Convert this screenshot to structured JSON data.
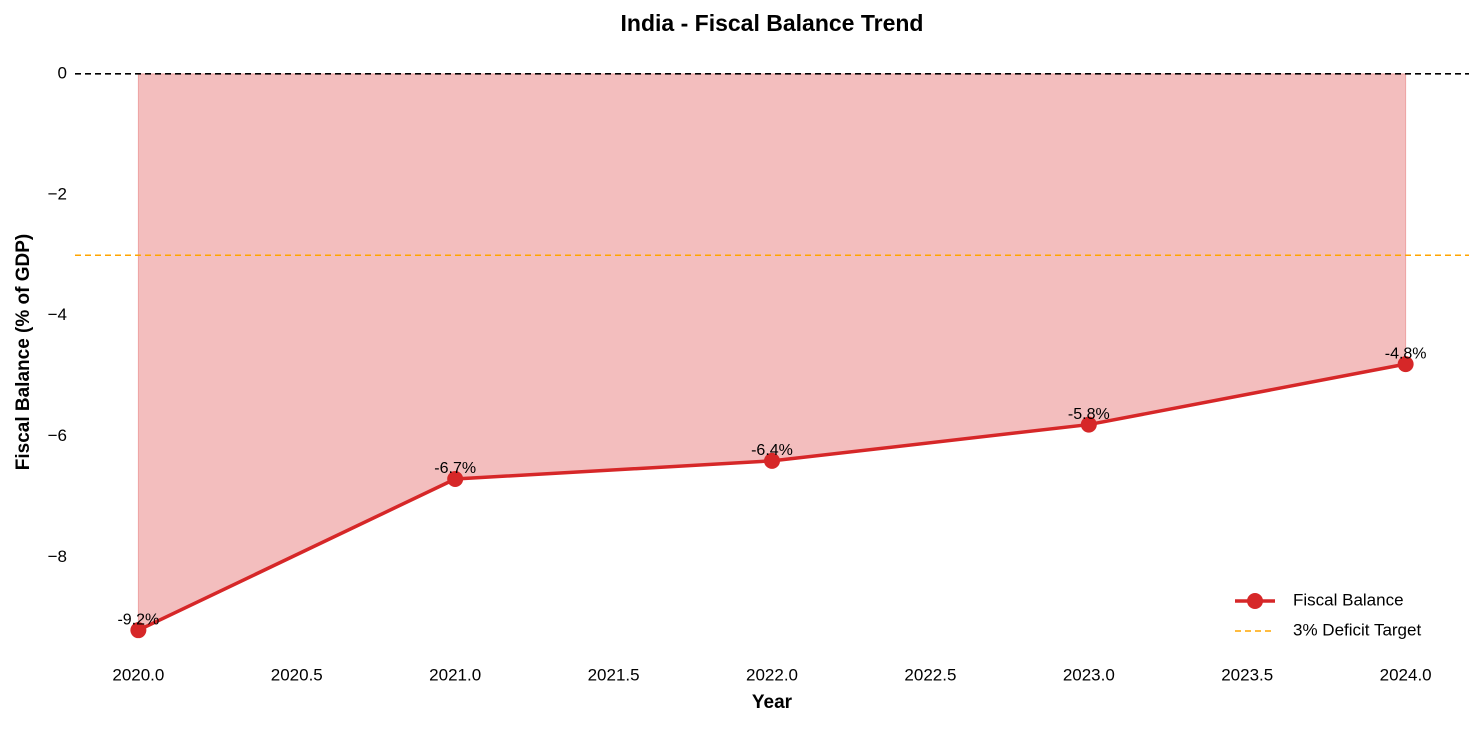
{
  "chart_data": {
    "type": "line",
    "title": "India - Fiscal Balance Trend",
    "xlabel": "Year",
    "ylabel": "Fiscal Balance (% of GDP)",
    "x": [
      2020,
      2021,
      2022,
      2023,
      2024
    ],
    "series": [
      {
        "name": "Fiscal Balance",
        "color": "#d62728",
        "fill": true,
        "fill_opacity": 0.3,
        "values": [
          -9.2,
          -6.7,
          -6.4,
          -5.8,
          -4.8
        ],
        "value_labels": [
          "-9.2%",
          "-6.7%",
          "-6.4%",
          "-5.8%",
          "-4.8%"
        ]
      }
    ],
    "reference_lines": [
      {
        "value": 0,
        "color": "#000000"
      },
      {
        "name": "3% Deficit Target",
        "value": -3,
        "color": "#ffa500"
      }
    ],
    "xlim": [
      2019.8,
      2024.2
    ],
    "ylim": [
      -9.66,
      0.46
    ],
    "xticks": [
      {
        "value": 2020,
        "label": "2020.0"
      },
      {
        "value": 2020.5,
        "label": "2020.5"
      },
      {
        "value": 2021,
        "label": "2021.0"
      },
      {
        "value": 2021.5,
        "label": "2021.5"
      },
      {
        "value": 2022,
        "label": "2022.0"
      },
      {
        "value": 2022.5,
        "label": "2022.5"
      },
      {
        "value": 2023,
        "label": "2023.0"
      },
      {
        "value": 2023.5,
        "label": "2023.5"
      },
      {
        "value": 2024,
        "label": "2024.0"
      }
    ],
    "yticks": [
      0,
      {
        "value": -2,
        "label": "−2"
      },
      {
        "value": -4,
        "label": "−4"
      },
      {
        "value": -6,
        "label": "−6"
      },
      {
        "value": -8,
        "label": "−8"
      }
    ],
    "grid": false,
    "legend": "lower right"
  }
}
